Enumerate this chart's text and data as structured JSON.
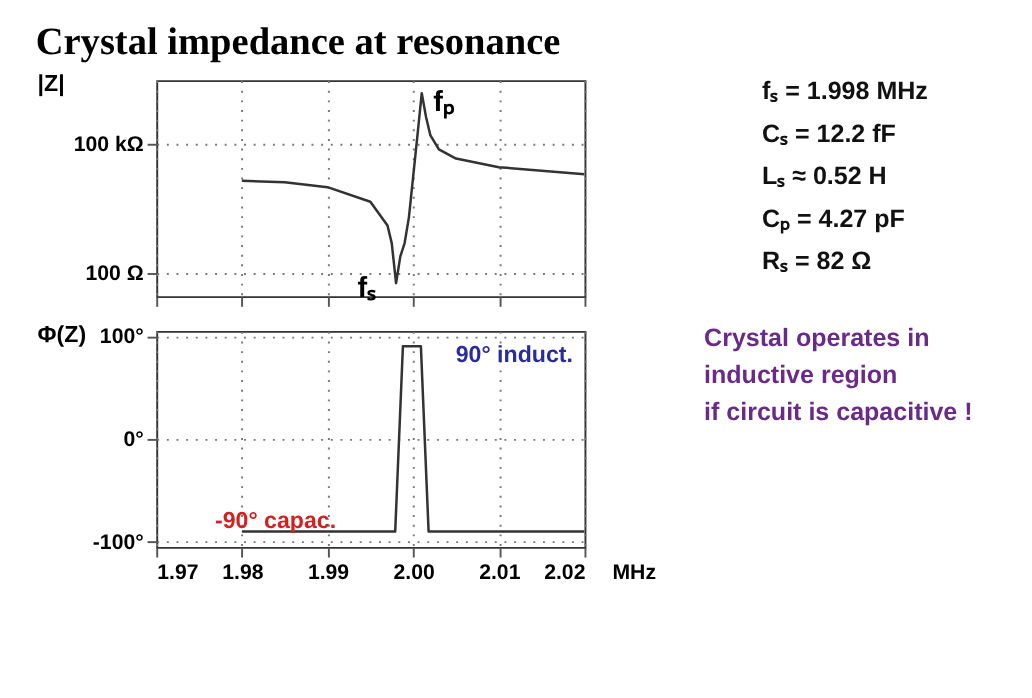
{
  "chart_data": [
    {
      "type": "line",
      "title": "Crystal impedance at resonance",
      "ylabel": "|Z|",
      "log": "y",
      "grid": true,
      "tick_labels": "y",
      "color": "#333333",
      "x": [
        1.98,
        1.985,
        1.99,
        1.995,
        1.997,
        1.9975,
        1.998,
        1.9985,
        1.999,
        1.9995,
        2.0,
        2.0005,
        2.001,
        2.0015,
        2.002,
        2.003,
        2.005,
        2.01,
        2.015,
        2.02
      ],
      "values": [
        14000,
        13000,
        10000,
        4600,
        1300,
        500,
        60,
        250,
        510,
        2000,
        17800,
        160000,
        1500000,
        420000,
        160000,
        75000,
        46000,
        29000,
        24000,
        20000
      ],
      "xlim": [
        1.97,
        2.02
      ],
      "xticks": [
        1.97,
        1.98,
        1.99,
        2.0,
        2.01,
        2.02
      ],
      "ylim": [
        30,
        3000000
      ],
      "yticks": [
        {
          "value": 100,
          "label": "100 Ω"
        },
        {
          "value": 100000,
          "label": "100 kΩ"
        }
      ],
      "annotations": [
        {
          "text": "fₚ",
          "x": 2.001,
          "y": 1500000
        },
        {
          "text": "fₛ",
          "x": 1.998,
          "y": 60
        }
      ]
    },
    {
      "type": "line",
      "ylabel": "Φ(Z)",
      "xlabel": "MHz",
      "grid": true,
      "color": "#333333",
      "x": [
        1.98,
        1.9979,
        1.9988,
        2.0009,
        2.0018,
        2.02
      ],
      "values": [
        -90,
        -90,
        90,
        90,
        -90,
        -90
      ],
      "xlim": [
        1.97,
        2.02
      ],
      "xticks": [
        1.97,
        1.98,
        1.99,
        {
          "value": 2.0,
          "label": "2.00"
        },
        2.01,
        2.02
      ],
      "ylim": [
        -105,
        105
      ],
      "yticks": [
        {
          "value": -100,
          "label": "-100°"
        },
        {
          "value": 0,
          "label": "0°"
        },
        {
          "value": 100,
          "label": "100°"
        }
      ],
      "annotations": [
        "90° induct.",
        "-90° capac."
      ]
    },
    {
      "type": "other",
      "annotations": [
        "fₛ = 1.998 MHz",
        "Cₛ = 12.2 fF",
        "Lₛ ≈ 0.52 H",
        "Cₚ = 4.27 pF",
        "Rₛ = 82 Ω",
        "Crystal operates in",
        "inductive region",
        "if circuit is capacitive !"
      ]
    }
  ]
}
